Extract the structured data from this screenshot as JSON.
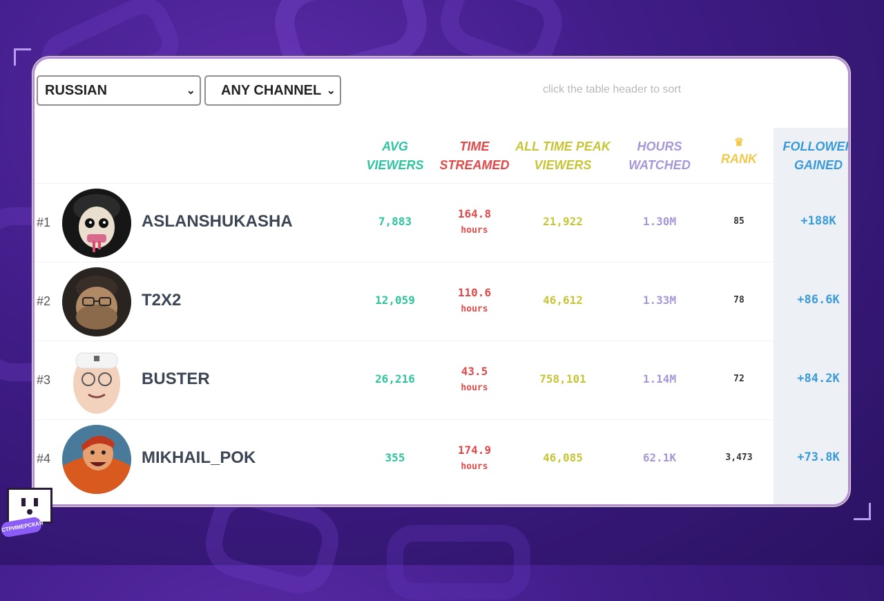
{
  "filters": {
    "language": "RUSSIAN",
    "channel": "ANY CHANNEL",
    "hint": "click the table header to sort"
  },
  "columns": {
    "avg": [
      "AVG",
      "VIEWERS"
    ],
    "time": [
      "TIME",
      "STREAMED"
    ],
    "peak": [
      "ALL TIME PEAK",
      "VIEWERS"
    ],
    "hours": [
      "HOURS",
      "WATCHED"
    ],
    "rank": [
      "RANK"
    ],
    "followers": [
      "FOLLOWER",
      "GAINED"
    ]
  },
  "rows": [
    {
      "num": "#1",
      "name": "ASLANSHUKASHA",
      "avg": "7,883",
      "time": "164.8",
      "time_unit": "hours",
      "peak": "21,922",
      "hours": "1.30M",
      "rank": "85",
      "followers": "+188K"
    },
    {
      "num": "#2",
      "name": "T2X2",
      "avg": "12,059",
      "time": "110.6",
      "time_unit": "hours",
      "peak": "46,612",
      "hours": "1.33M",
      "rank": "78",
      "followers": "+86.6K"
    },
    {
      "num": "#3",
      "name": "BUSTER",
      "avg": "26,216",
      "time": "43.5",
      "time_unit": "hours",
      "peak": "758,101",
      "hours": "1.14M",
      "rank": "72",
      "followers": "+84.2K"
    },
    {
      "num": "#4",
      "name": "MIKHAIL_POK",
      "avg": "355",
      "time": "174.9",
      "time_unit": "hours",
      "peak": "46,085",
      "hours": "62.1K",
      "rank": "3,473",
      "followers": "+73.8K"
    }
  ],
  "brand": {
    "tag": "СТРИМЕРСКАЯ"
  },
  "colors": {
    "avg": "#2ec4a0",
    "time": "#e14848",
    "peak": "#c7c436",
    "hours": "#a897d6",
    "rank": "#f2c84a",
    "followers": "#3a9ad6"
  },
  "icons": {
    "rank_header": "crown-icon",
    "dropdown": "chevron-down-icon"
  }
}
